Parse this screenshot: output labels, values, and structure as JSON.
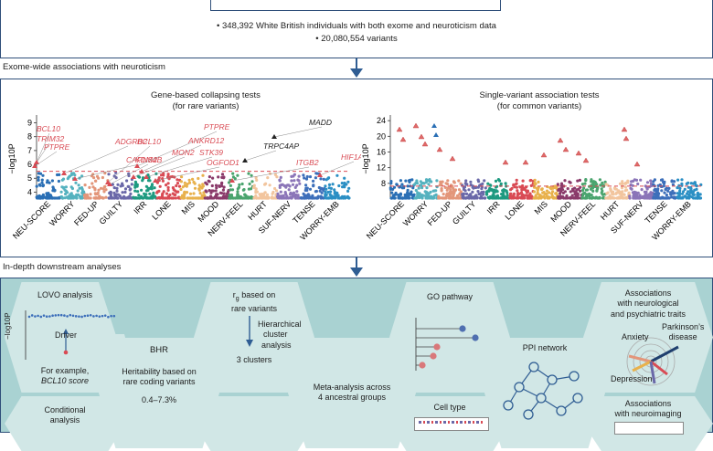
{
  "top": {
    "line1": "• 348,392 White British individuals with both exome and neuroticism data",
    "line2": "• 20,080,554 variants"
  },
  "section1": {
    "title": "Exome-wide associations with neuroticism"
  },
  "gene_panel": {
    "title_line1": "Gene-based collapsing tests",
    "title_line2": "(for rare variants)",
    "ylabel": "−log10P",
    "yticks": [
      "4",
      "5",
      "6",
      "7",
      "8",
      "9"
    ],
    "threshold": 5.5,
    "categories": [
      "NEU-SCORE",
      "WORRY",
      "FED-UP",
      "GUILTY",
      "IRR",
      "LONE",
      "MIS",
      "MOOD",
      "NERV-FEEL",
      "HURT",
      "SUF-NERV",
      "TENSE",
      "WORRY-EMB"
    ],
    "colors": [
      "#2a6fb5",
      "#55b2bf",
      "#e3967a",
      "#6a68a8",
      "#1e9a80",
      "#d94b54",
      "#e8b14c",
      "#8a3a6a",
      "#4aa46e",
      "#f2c59e",
      "#8b75b8",
      "#3d6fba",
      "#2b8fc4"
    ],
    "annotations": [
      {
        "text": "BCL10",
        "color": "#d94b54",
        "italic": true
      },
      {
        "text": "TRIM32",
        "color": "#d94b54",
        "italic": true
      },
      {
        "text": "PTPRE",
        "color": "#d94b54",
        "italic": true
      },
      {
        "text": "ADGRB2",
        "color": "#d94b54",
        "italic": true
      },
      {
        "text": "CAPNS2",
        "color": "#d94b54",
        "italic": true
      },
      {
        "text": "BCL10",
        "color": "#d94b54",
        "italic": true
      },
      {
        "text": "KDM4B",
        "color": "#d94b54",
        "italic": true
      },
      {
        "text": "PTPRE",
        "color": "#d94b54",
        "italic": true
      },
      {
        "text": "ANKRD12",
        "color": "#d94b54",
        "italic": true
      },
      {
        "text": "MON2",
        "color": "#d94b54",
        "italic": true
      },
      {
        "text": "STK39",
        "color": "#d94b54",
        "italic": true
      },
      {
        "text": "OGFOD1",
        "color": "#d94b54",
        "italic": true
      },
      {
        "text": "MADD",
        "color": "#222222",
        "italic": true
      },
      {
        "text": "TRPC4AP",
        "color": "#222222",
        "italic": true
      },
      {
        "text": "ITGB2",
        "color": "#d94b54",
        "italic": true
      },
      {
        "text": "HIF1A",
        "color": "#d94b54",
        "italic": true
      }
    ]
  },
  "variant_panel": {
    "title_line1": "Single-variant association tests",
    "title_line2": "(for common variants)",
    "ylabel": "−log10P",
    "yticks": [
      "8",
      "12",
      "16",
      "20",
      "24"
    ],
    "threshold": 7.3,
    "categories": [
      "NEU-SCORE",
      "WORRY",
      "FED-UP",
      "GUILTY",
      "IRR",
      "LONE",
      "MIS",
      "MOOD",
      "NERV-FEEL",
      "HURT",
      "SUF-NERV",
      "TENSE",
      "WORRY-EMB"
    ]
  },
  "section2": {
    "title": "In-depth downstream analyses"
  },
  "hexes": {
    "lovo": {
      "title": "LOVO analysis",
      "ylabel": "−log10P",
      "driver": "Driver",
      "note1": "For example,",
      "note2": "BCL10 score"
    },
    "bhr": {
      "title": "BHR",
      "desc1": "Heritability based on",
      "desc2": "rare coding variants",
      "range": "0.4–7.3%"
    },
    "rg": {
      "title1": "based on",
      "title2": "rare variants",
      "rg_symbol": "r",
      "rg_sub": "g",
      "h1": "Hierarchical",
      "h2": "cluster",
      "h3": "analysis",
      "clusters": "3 clusters"
    },
    "meta": {
      "line1": "Meta-analysis across",
      "line2": "4 ancestral groups"
    },
    "go": {
      "title": "GO pathway"
    },
    "cell": {
      "title": "Cell type"
    },
    "ppi": {
      "title": "PPI network"
    },
    "traits": {
      "line1": "Associations",
      "line2": "with neurological",
      "line3": "and psychiatric traits",
      "anxiety": "Anxiety",
      "parkinson1": "Parkinson’s",
      "parkinson2": "disease",
      "depression": "Depression"
    },
    "neuro": {
      "line1": "Associations",
      "line2": "with neuroimaging"
    },
    "cond": {
      "line1": "Conditional",
      "line2": "analysis"
    }
  }
}
